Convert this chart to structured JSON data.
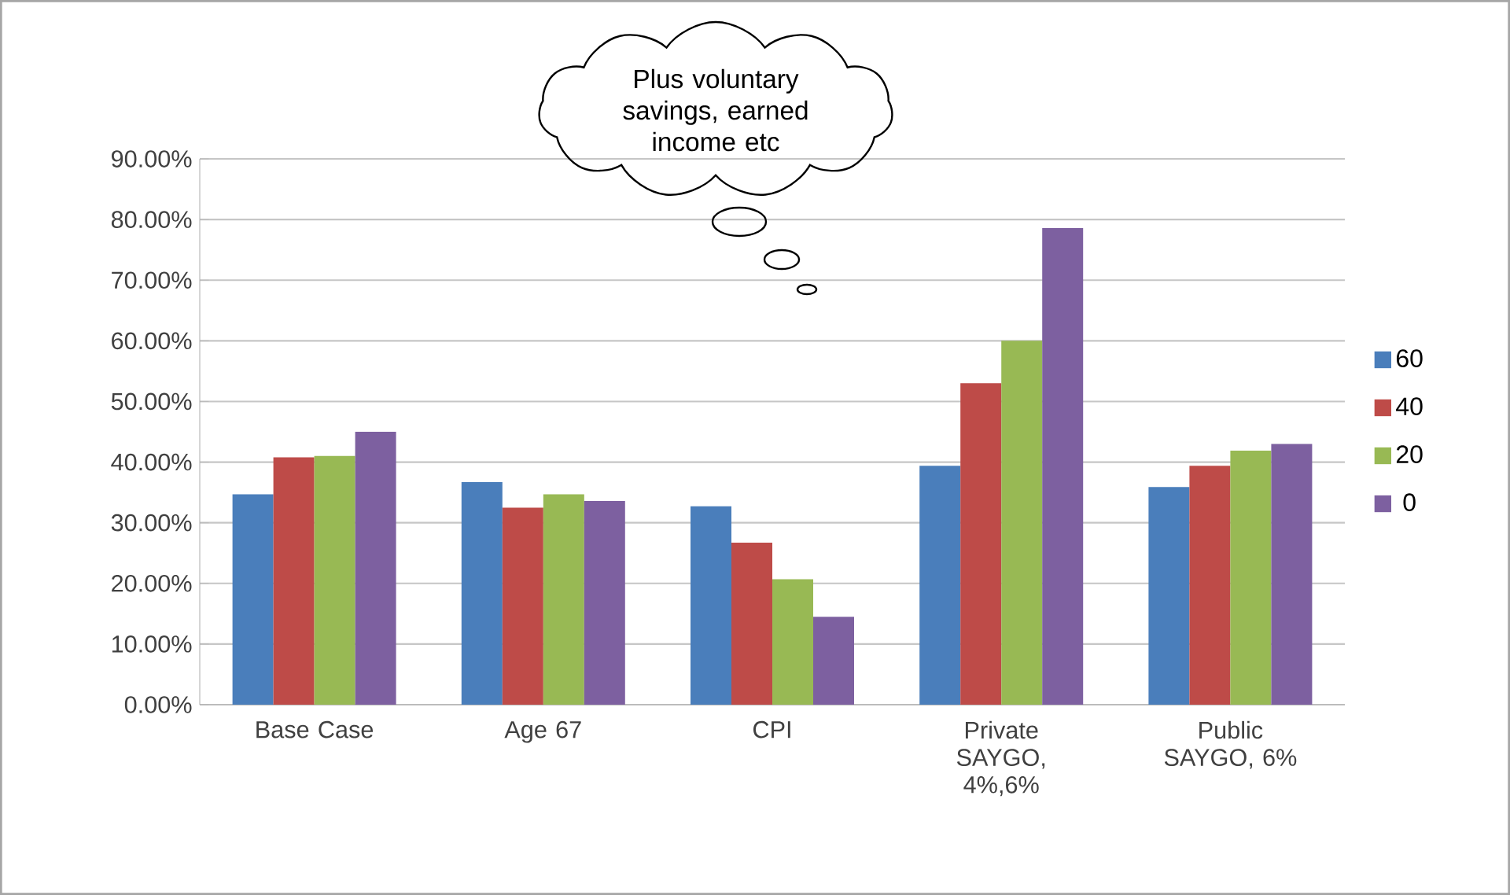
{
  "chart_data": {
    "type": "bar",
    "categories": [
      "Base Case",
      "Age 67",
      "CPI",
      "Private SAYGO, 4%,6%",
      "Public SAYGO, 6%"
    ],
    "series": [
      {
        "name": "60",
        "color": "#4a7ebb",
        "values": [
          34.7,
          36.7,
          32.7,
          39.4,
          35.9
        ]
      },
      {
        "name": "40",
        "color": "#be4b48",
        "values": [
          40.8,
          32.5,
          26.7,
          53.0,
          39.4
        ]
      },
      {
        "name": "20",
        "color": "#98b954",
        "values": [
          41.0,
          34.7,
          20.7,
          60.0,
          41.9
        ]
      },
      {
        "name": "0",
        "color": "#7d60a0",
        "values": [
          45.0,
          33.6,
          14.5,
          78.6,
          43.0
        ]
      }
    ],
    "ylim": [
      0,
      90
    ],
    "yticks": [
      {
        "value": 0,
        "label": "0.00%"
      },
      {
        "value": 10,
        "label": "10.00%"
      },
      {
        "value": 20,
        "label": "20.00%"
      },
      {
        "value": 30,
        "label": "30.00%"
      },
      {
        "value": 40,
        "label": "40.00%"
      },
      {
        "value": 50,
        "label": "50.00%"
      },
      {
        "value": 60,
        "label": "60.00%"
      },
      {
        "value": 70,
        "label": "70.00%"
      },
      {
        "value": 80,
        "label": "80.00%"
      },
      {
        "value": 90,
        "label": "90.00%"
      }
    ],
    "grid": "y",
    "legend": "right",
    "annotations": [
      "Plus voluntary savings, earned income etc"
    ]
  }
}
